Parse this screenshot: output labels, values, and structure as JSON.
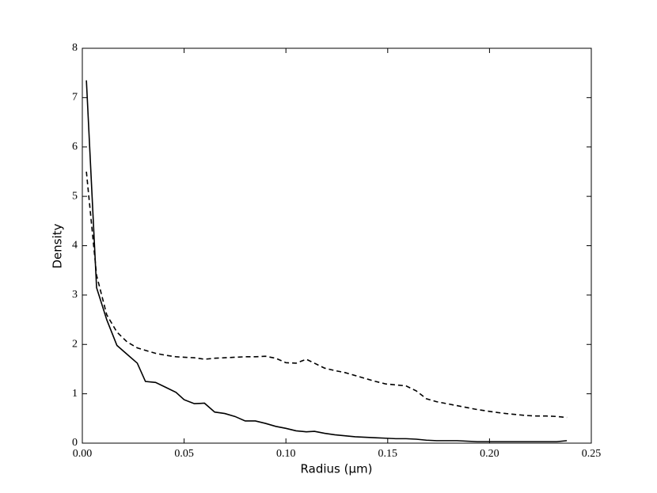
{
  "chart_data": {
    "type": "line",
    "xlabel": "Radius (μm)",
    "ylabel": "Density",
    "x": [
      0.002,
      0.007,
      0.012,
      0.017,
      0.022,
      0.027,
      0.031,
      0.036,
      0.041,
      0.046,
      0.05,
      0.055,
      0.06,
      0.065,
      0.07,
      0.075,
      0.08,
      0.085,
      0.09,
      0.095,
      0.1,
      0.105,
      0.11,
      0.114,
      0.119,
      0.124,
      0.129,
      0.134,
      0.139,
      0.144,
      0.149,
      0.154,
      0.159,
      0.164,
      0.169,
      0.174,
      0.179,
      0.184,
      0.189,
      0.194,
      0.199,
      0.204,
      0.208,
      0.213,
      0.218,
      0.223,
      0.228,
      0.233,
      0.238
    ],
    "series": [
      {
        "color": "#000000",
        "dash": "solid",
        "values": [
          7.35,
          3.15,
          2.5,
          1.98,
          1.8,
          1.62,
          1.25,
          1.23,
          1.13,
          1.03,
          0.88,
          0.8,
          0.81,
          0.63,
          0.6,
          0.54,
          0.45,
          0.45,
          0.4,
          0.34,
          0.3,
          0.25,
          0.23,
          0.24,
          0.2,
          0.17,
          0.15,
          0.13,
          0.12,
          0.11,
          0.1,
          0.09,
          0.09,
          0.08,
          0.06,
          0.05,
          0.05,
          0.05,
          0.04,
          0.03,
          0.03,
          0.03,
          0.03,
          0.03,
          0.03,
          0.03,
          0.03,
          0.03,
          0.05
        ]
      },
      {
        "color": "#000000",
        "dash": "dashed",
        "values": [
          5.5,
          3.4,
          2.6,
          2.25,
          2.05,
          1.93,
          1.88,
          1.82,
          1.78,
          1.75,
          1.74,
          1.73,
          1.7,
          1.72,
          1.73,
          1.74,
          1.75,
          1.75,
          1.76,
          1.72,
          1.63,
          1.62,
          1.7,
          1.62,
          1.52,
          1.47,
          1.43,
          1.37,
          1.31,
          1.25,
          1.2,
          1.18,
          1.16,
          1.06,
          0.9,
          0.84,
          0.8,
          0.76,
          0.72,
          0.68,
          0.65,
          0.62,
          0.6,
          0.58,
          0.56,
          0.55,
          0.55,
          0.54,
          0.52
        ]
      }
    ],
    "xlim": [
      0,
      0.25
    ],
    "xticks": [
      {
        "value": 0,
        "label": "0.00"
      },
      {
        "value": 0.05,
        "label": "0.05"
      },
      {
        "value": 0.1,
        "label": "0.10"
      },
      {
        "value": 0.15,
        "label": "0.15"
      },
      {
        "value": 0.2,
        "label": "0.20"
      },
      {
        "value": 0.25,
        "label": "0.25"
      }
    ],
    "ylim": [
      0,
      8
    ],
    "yticks": [
      0,
      1,
      2,
      3,
      4,
      5,
      6,
      7,
      8
    ],
    "grid": false
  }
}
